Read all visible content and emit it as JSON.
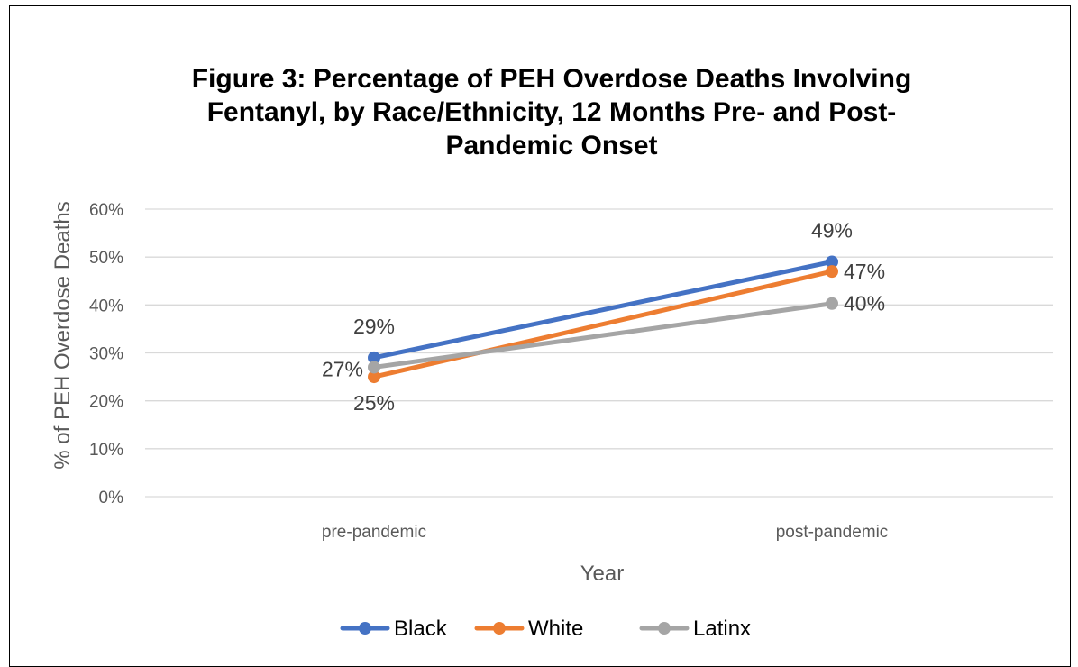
{
  "chart_data": {
    "type": "line",
    "title_lines": [
      "Figure 3: Percentage of PEH Overdose Deaths Involving",
      "Fentanyl, by Race/Ethnicity, 12 Months Pre- and Post-",
      "Pandemic Onset"
    ],
    "xlabel": "Year",
    "ylabel": "% of PEH Overdose Deaths",
    "categories": [
      "pre-pandemic",
      "post-pandemic"
    ],
    "ylim": [
      0,
      60
    ],
    "yticks": [
      0,
      10,
      20,
      30,
      40,
      50,
      60
    ],
    "ytick_labels": [
      "0%",
      "10%",
      "20%",
      "30%",
      "40%",
      "50%",
      "60%"
    ],
    "grid": true,
    "legend_position": "bottom",
    "series": [
      {
        "name": "Black",
        "color": "#4472C4",
        "values": [
          29,
          49
        ],
        "labels": [
          "29%",
          "49%"
        ],
        "label_positions": [
          "above",
          "above"
        ]
      },
      {
        "name": "White",
        "color": "#ED7D31",
        "values": [
          25,
          47
        ],
        "labels": [
          "25%",
          "47%"
        ],
        "label_positions": [
          "below",
          "right"
        ]
      },
      {
        "name": "Latinx",
        "color": "#A5A5A5",
        "values": [
          27,
          40.3
        ],
        "labels": [
          "27%",
          "40%"
        ],
        "label_positions": [
          "left",
          "right"
        ]
      }
    ]
  }
}
